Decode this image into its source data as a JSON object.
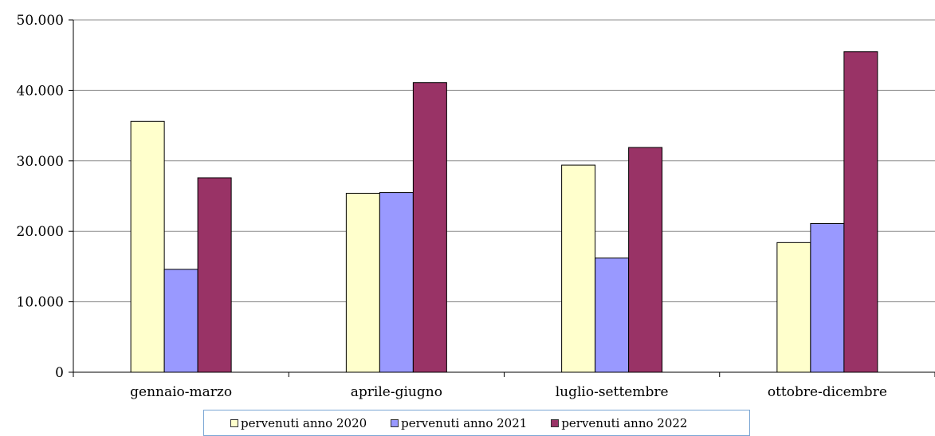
{
  "chart_data": {
    "type": "bar",
    "categories": [
      "gennaio-marzo",
      "aprile-giugno",
      "luglio-settembre",
      "ottobre-dicembre"
    ],
    "series": [
      {
        "name": "pervenuti anno 2020",
        "color": "#ffffcc",
        "values": [
          35600,
          25400,
          29400,
          18400
        ]
      },
      {
        "name": "pervenuti anno 2021",
        "color": "#9999ff",
        "values": [
          14600,
          25500,
          16200,
          21100
        ]
      },
      {
        "name": "pervenuti anno 2022",
        "color": "#993366",
        "values": [
          27600,
          41100,
          31900,
          45500
        ]
      }
    ],
    "ylim": [
      0,
      50000
    ],
    "yticks": [
      0,
      10000,
      20000,
      30000,
      40000,
      50000
    ],
    "ytick_labels": [
      "0",
      "10.000",
      "20.000",
      "30.000",
      "40.000",
      "50.000"
    ],
    "title": "",
    "xlabel": "",
    "ylabel": "",
    "grid": true,
    "legend_position": "bottom"
  }
}
